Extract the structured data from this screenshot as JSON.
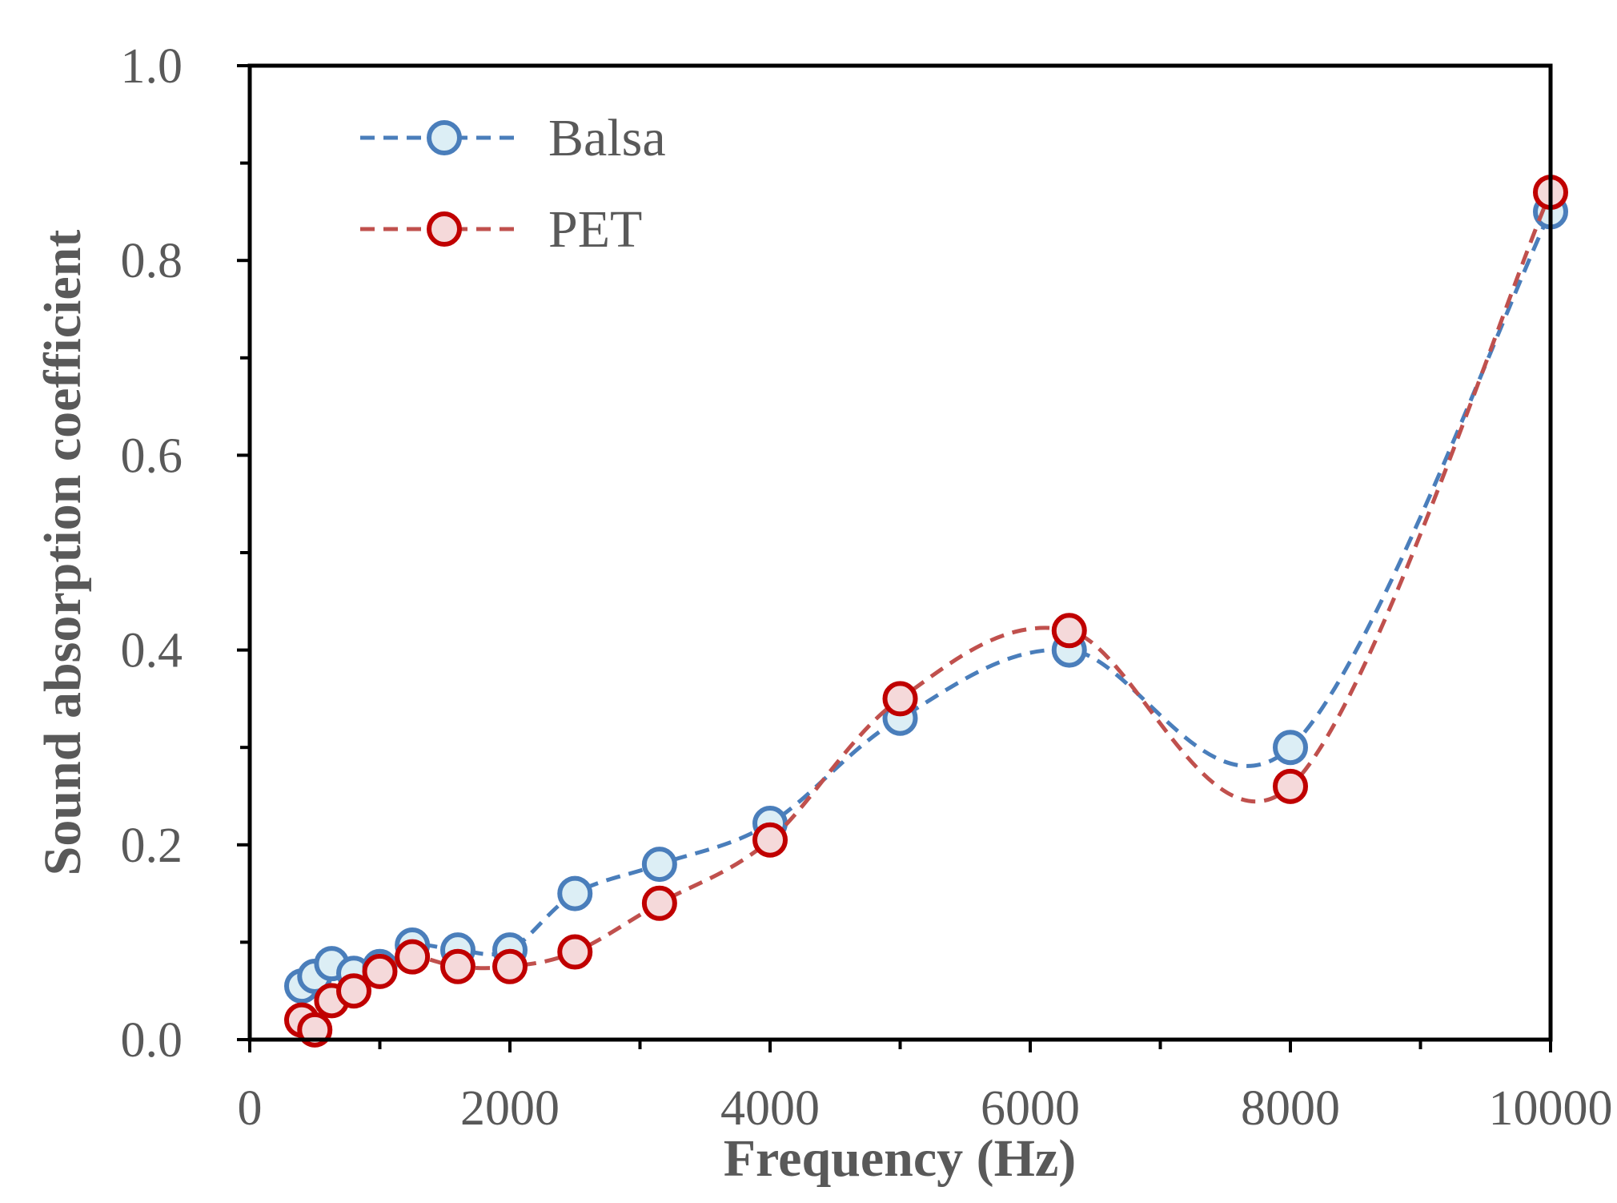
{
  "chart_data": {
    "type": "line",
    "title": "",
    "xlabel": "Frequency (Hz)",
    "ylabel": "Sound absorption coefficient",
    "xlim": [
      0,
      10000
    ],
    "ylim": [
      0,
      1.0
    ],
    "x_ticks": [
      0,
      2000,
      4000,
      6000,
      8000,
      10000
    ],
    "x_tick_labels": [
      "0",
      "2000",
      "4000",
      "6000",
      "8000",
      "10000"
    ],
    "x_minor_step": 1000,
    "y_ticks": [
      0.0,
      0.2,
      0.4,
      0.6,
      0.8,
      1.0
    ],
    "y_tick_labels": [
      "0.0",
      "0.2",
      "0.4",
      "0.6",
      "0.8",
      "1.0"
    ],
    "y_minor_step": 0.1,
    "grid": false,
    "legend_position": "top-left",
    "line_style": "dashed-smooth",
    "series": [
      {
        "name": "Balsa",
        "line_color": "#4A7EBB",
        "marker_fill": "#DCEEF5",
        "x": [
          400,
          500,
          630,
          800,
          1000,
          1250,
          1600,
          2000,
          2500,
          3150,
          4000,
          5000,
          6300,
          8000,
          10000
        ],
        "y": [
          0.055,
          0.065,
          0.078,
          0.068,
          0.075,
          0.097,
          0.092,
          0.092,
          0.15,
          0.18,
          0.222,
          0.33,
          0.4,
          0.3,
          0.85
        ]
      },
      {
        "name": "PET",
        "line_color": "#C0504D",
        "marker_stroke": "#C00000",
        "marker_fill": "#F5D9DA",
        "x": [
          400,
          500,
          630,
          800,
          1000,
          1250,
          1600,
          2000,
          2500,
          3150,
          4000,
          5000,
          6300,
          8000,
          10000
        ],
        "y": [
          0.02,
          0.01,
          0.04,
          0.05,
          0.07,
          0.085,
          0.075,
          0.075,
          0.09,
          0.14,
          0.205,
          0.35,
          0.42,
          0.26,
          0.87
        ]
      }
    ]
  }
}
